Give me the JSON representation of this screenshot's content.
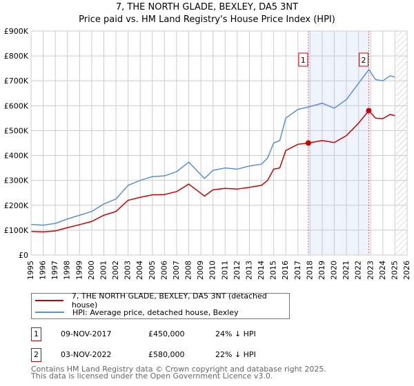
{
  "chart_data": {
    "type": "line",
    "title": "7, THE NORTH GLADE, BEXLEY, DA5 3NT",
    "subtitle": "Price paid vs. HM Land Registry's House Price Index (HPI)",
    "xlabel": "",
    "ylabel": "",
    "xlim": [
      1995,
      2026
    ],
    "ylim": [
      0,
      900000
    ],
    "x_ticks": [
      "1995",
      "1996",
      "1997",
      "1998",
      "1999",
      "2000",
      "2001",
      "2002",
      "2003",
      "2004",
      "2005",
      "2006",
      "2007",
      "2008",
      "2009",
      "2010",
      "2011",
      "2012",
      "2013",
      "2014",
      "2015",
      "2016",
      "2017",
      "2018",
      "2019",
      "2020",
      "2021",
      "2022",
      "2023",
      "2024",
      "2025",
      "2026"
    ],
    "y_ticks": [
      {
        "v": 0,
        "label": "£0"
      },
      {
        "v": 100000,
        "label": "£100K"
      },
      {
        "v": 200000,
        "label": "£200K"
      },
      {
        "v": 300000,
        "label": "£300K"
      },
      {
        "v": 400000,
        "label": "£400K"
      },
      {
        "v": 500000,
        "label": "£500K"
      },
      {
        "v": 600000,
        "label": "£600K"
      },
      {
        "v": 700000,
        "label": "£700K"
      },
      {
        "v": 800000,
        "label": "£800K"
      },
      {
        "v": 900000,
        "label": "£900K"
      }
    ],
    "grid": true,
    "forecast_from": 2025.1,
    "series": [
      {
        "name": "7, THE NORTH GLADE, BEXLEY, DA5 3NT (detached house)",
        "color": "#cc0000",
        "x": [
          1995,
          1996,
          1997,
          1998,
          1999,
          2000,
          2001,
          2002,
          2003,
          2004,
          2005,
          2006,
          2007,
          2008,
          2009.3,
          2010,
          2011,
          2012,
          2013,
          2014,
          2014.5,
          2015,
          2015.5,
          2016,
          2017,
          2017.86,
          2019,
          2020,
          2021,
          2022,
          2022.84,
          2023.4,
          2024,
          2024.6,
          2025
        ],
        "y": [
          95000,
          93000,
          97000,
          110000,
          122000,
          135000,
          160000,
          175000,
          220000,
          232000,
          242000,
          243000,
          255000,
          285000,
          237000,
          262000,
          268000,
          265000,
          272000,
          280000,
          300000,
          345000,
          350000,
          420000,
          445000,
          450000,
          460000,
          452000,
          480000,
          530000,
          580000,
          550000,
          548000,
          565000,
          560000
        ]
      },
      {
        "name": "HPI: Average price, detached house, Bexley",
        "color": "#5b8fd6",
        "x": [
          1995,
          1996,
          1997,
          1998,
          1999,
          2000,
          2001,
          2002,
          2003,
          2004,
          2005,
          2006,
          2007,
          2008,
          2009.3,
          2010,
          2011,
          2012,
          2013,
          2014,
          2014.5,
          2015,
          2015.5,
          2016,
          2017,
          2017.9,
          2019,
          2020,
          2021,
          2022,
          2022.85,
          2023.4,
          2024,
          2024.6,
          2025
        ],
        "y": [
          123000,
          120000,
          127000,
          145000,
          160000,
          175000,
          205000,
          225000,
          280000,
          300000,
          315000,
          318000,
          335000,
          373000,
          308000,
          340000,
          350000,
          345000,
          358000,
          365000,
          390000,
          450000,
          460000,
          550000,
          585000,
          595000,
          610000,
          590000,
          625000,
          690000,
          745000,
          705000,
          700000,
          720000,
          715000
        ]
      }
    ],
    "annotations": [
      {
        "label": "1",
        "x": 2017.86,
        "y": 450000,
        "date": "09-NOV-2017",
        "price": "£450,000",
        "hpi": "24% ↓ HPI"
      },
      {
        "label": "2",
        "x": 2022.84,
        "y": 580000,
        "date": "03-NOV-2022",
        "price": "£580,000",
        "hpi": "22% ↓ HPI"
      }
    ]
  },
  "footer": {
    "line1": "Contains HM Land Registry data © Crown copyright and database right 2025.",
    "line2": "This data is licensed under the Open Government Licence v3.0."
  }
}
